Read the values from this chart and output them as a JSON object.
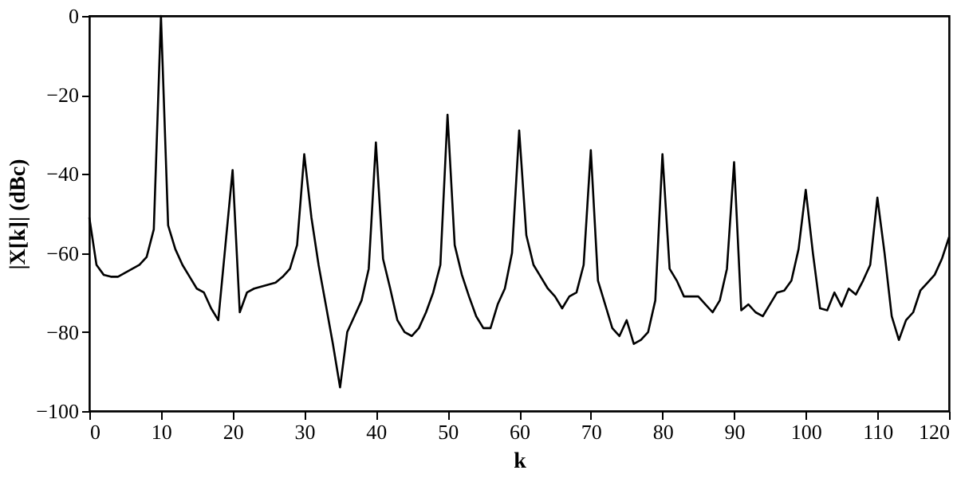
{
  "chart_data": {
    "type": "line",
    "xlabel": "k",
    "ylabel": "|X[k]| (dBc)",
    "x": [
      0,
      1,
      2,
      3,
      4,
      5,
      6,
      7,
      8,
      9,
      10,
      11,
      12,
      13,
      14,
      15,
      16,
      17,
      18,
      19,
      20,
      21,
      22,
      23,
      24,
      25,
      26,
      27,
      28,
      29,
      30,
      31,
      32,
      33,
      34,
      35,
      36,
      37,
      38,
      39,
      40,
      41,
      42,
      43,
      44,
      45,
      46,
      47,
      48,
      49,
      50,
      51,
      52,
      53,
      54,
      55,
      56,
      57,
      58,
      59,
      60,
      61,
      62,
      63,
      64,
      65,
      66,
      67,
      68,
      69,
      70,
      71,
      72,
      73,
      74,
      75,
      76,
      77,
      78,
      79,
      80,
      81,
      82,
      83,
      84,
      85,
      86,
      87,
      88,
      89,
      90,
      91,
      92,
      93,
      94,
      95,
      96,
      97,
      98,
      99,
      100,
      101,
      102,
      103,
      104,
      105,
      106,
      107,
      108,
      109,
      110,
      111,
      112,
      113,
      114,
      115,
      116,
      117,
      118,
      119,
      120
    ],
    "series": [
      {
        "color": "#000000",
        "values": [
          -51,
          -63,
          -65.5,
          -66,
          -66,
          -65,
          -64,
          -63,
          -61,
          -54,
          0,
          -53,
          -59,
          -63,
          -66,
          -69,
          -70,
          -74,
          -77,
          -58,
          -39,
          -75,
          -70,
          -69,
          -68.5,
          -68,
          -67.5,
          -66,
          -64,
          -58,
          -35,
          -51,
          -63,
          -73,
          -83,
          -94,
          -80,
          -76,
          -72,
          -64,
          -32,
          -61.5,
          -69,
          -77,
          -80,
          -81,
          -79,
          -75,
          -70,
          -63,
          -25,
          -58,
          -65.5,
          -71,
          -76,
          -79,
          -79,
          -73,
          -69,
          -60,
          -29,
          -55.5,
          -63,
          -66,
          -69,
          -71,
          -74,
          -71,
          -70,
          -63,
          -34,
          -67,
          -73,
          -79,
          -81,
          -77,
          -83,
          -82,
          -80,
          -72,
          -35,
          -64,
          -67,
          -71,
          -71,
          -71,
          -73,
          -75,
          -72,
          -64,
          -37,
          -74.5,
          -73,
          -75,
          -76,
          -73,
          -70,
          -69.5,
          -67,
          -59,
          -44,
          -60,
          -74,
          -74.5,
          -70,
          -73.5,
          -69,
          -70.5,
          -67,
          -63,
          -46,
          -60,
          -76,
          -82,
          -77,
          -75,
          -69.5,
          -67.5,
          -65.5,
          -61.5,
          -56
        ]
      }
    ],
    "xlim": [
      0,
      120
    ],
    "xticks": [
      0,
      10,
      20,
      30,
      40,
      50,
      60,
      70,
      80,
      90,
      100,
      110,
      120
    ],
    "ylim": [
      -100,
      0
    ],
    "yticks": [
      -100,
      -80,
      -60,
      -40,
      -20,
      0
    ],
    "grid": false,
    "legend": false,
    "marker": "none",
    "line_style": "solid"
  }
}
